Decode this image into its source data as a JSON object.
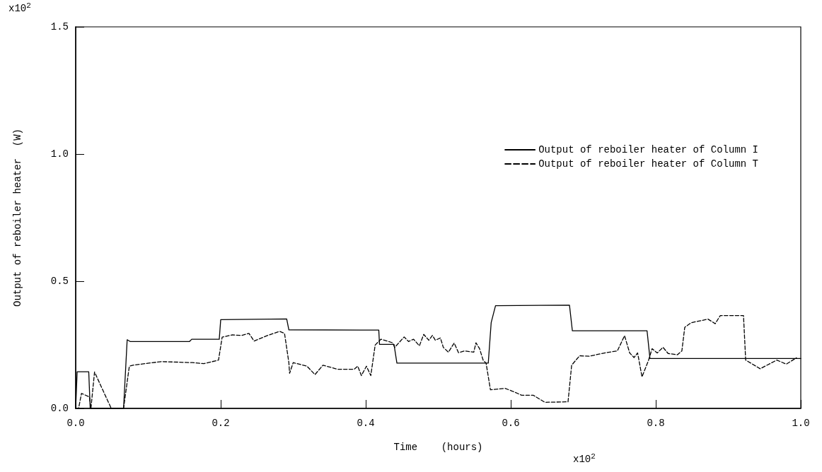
{
  "chart_data": {
    "type": "line",
    "xlabel": "Time    (hours)",
    "ylabel": "Output of reboiler heater  (W)",
    "annotations": [
      "x10$^{2}$",
      "x10$^{2}$"
    ],
    "xlim": [
      0,
      1
    ],
    "xticks": [
      {
        "value": 0,
        "label": "0.0"
      },
      {
        "value": 0.2,
        "label": "0.2"
      },
      {
        "value": 0.4,
        "label": "0.4"
      },
      {
        "value": 0.6,
        "label": "0.6"
      },
      {
        "value": 0.8,
        "label": "0.8"
      },
      {
        "value": 1,
        "label": "1.0"
      }
    ],
    "ylim": [
      0,
      1.5
    ],
    "yticks": [
      {
        "value": 0,
        "label": "0.0"
      },
      {
        "value": 0.5,
        "label": "0.5"
      },
      {
        "value": 1,
        "label": "1.0"
      },
      {
        "value": 1.5,
        "label": "1.5"
      }
    ],
    "grid": false,
    "legend": "top right",
    "marker": "none",
    "series": [
      {
        "name": "Output of reboiler heater of Column I",
        "color": "#000000",
        "line_style": "solid",
        "x": [
          0,
          0.002,
          0.018,
          0.02,
          0.066,
          0.071,
          0.075,
          0.157,
          0.16,
          0.198,
          0.2,
          0.291,
          0.294,
          0.418,
          0.419,
          0.439,
          0.443,
          0.569,
          0.573,
          0.579,
          0.681,
          0.685,
          0.788,
          0.792,
          1.0
        ],
        "values": [
          0,
          0.144,
          0.144,
          0,
          0,
          0.27,
          0.263,
          0.263,
          0.272,
          0.272,
          0.349,
          0.352,
          0.309,
          0.308,
          0.252,
          0.252,
          0.178,
          0.178,
          0.337,
          0.404,
          0.406,
          0.305,
          0.305,
          0.196,
          0.196
        ]
      },
      {
        "name": "Output of reboiler heater of Column T",
        "color": "#000000",
        "line_style": "dashed",
        "x": [
          0,
          0.004,
          0.008,
          0.019,
          0.021,
          0.026,
          0.049,
          0.066,
          0.074,
          0.079,
          0.118,
          0.161,
          0.177,
          0.197,
          0.202,
          0.216,
          0.229,
          0.239,
          0.246,
          0.265,
          0.281,
          0.288,
          0.294,
          0.295,
          0.3,
          0.319,
          0.33,
          0.341,
          0.361,
          0.384,
          0.389,
          0.394,
          0.401,
          0.407,
          0.413,
          0.421,
          0.437,
          0.44,
          0.453,
          0.459,
          0.466,
          0.474,
          0.48,
          0.487,
          0.492,
          0.496,
          0.503,
          0.507,
          0.514,
          0.522,
          0.528,
          0.536,
          0.549,
          0.552,
          0.557,
          0.562,
          0.566,
          0.572,
          0.592,
          0.602,
          0.615,
          0.631,
          0.647,
          0.679,
          0.684,
          0.695,
          0.708,
          0.731,
          0.747,
          0.757,
          0.764,
          0.77,
          0.775,
          0.781,
          0.79,
          0.795,
          0.802,
          0.81,
          0.817,
          0.83,
          0.836,
          0.84,
          0.849,
          0.872,
          0.882,
          0.889,
          0.921,
          0.924,
          0.944,
          0.967,
          0.98,
          0.994
        ],
        "values": [
          0,
          0,
          0.059,
          0.045,
          0,
          0.143,
          0,
          0,
          0.166,
          0.17,
          0.184,
          0.18,
          0.176,
          0.19,
          0.28,
          0.289,
          0.287,
          0.295,
          0.265,
          0.287,
          0.303,
          0.295,
          0.18,
          0.138,
          0.18,
          0.166,
          0.133,
          0.17,
          0.154,
          0.154,
          0.166,
          0.129,
          0.166,
          0.129,
          0.249,
          0.272,
          0.258,
          0.24,
          0.281,
          0.263,
          0.272,
          0.246,
          0.291,
          0.268,
          0.287,
          0.268,
          0.277,
          0.24,
          0.221,
          0.257,
          0.219,
          0.226,
          0.221,
          0.258,
          0.235,
          0.189,
          0.178,
          0.073,
          0.079,
          0.068,
          0.052,
          0.052,
          0.024,
          0.026,
          0.17,
          0.207,
          0.205,
          0.219,
          0.226,
          0.286,
          0.218,
          0.2,
          0.218,
          0.124,
          0.189,
          0.235,
          0.218,
          0.24,
          0.216,
          0.211,
          0.226,
          0.319,
          0.337,
          0.351,
          0.333,
          0.365,
          0.365,
          0.19,
          0.156,
          0.19,
          0.174,
          0.199
        ]
      }
    ]
  }
}
